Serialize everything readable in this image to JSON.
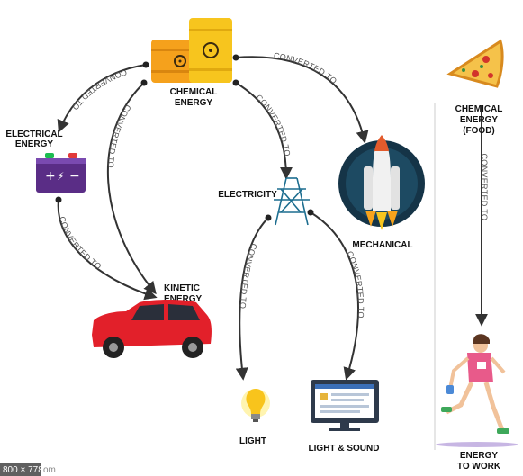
{
  "nodes": {
    "chemical": [
      "CHEMICAL",
      "ENERGY"
    ],
    "electrical": [
      "ELECTRICAL",
      "ENERGY"
    ],
    "electricity": "ELECTRICITY",
    "mechanical": "MECHANICAL",
    "kinetic": [
      "KINETIC",
      "ENERGY"
    ],
    "light": "LIGHT",
    "light_sound": "LIGHT & SOUND",
    "chemical_food": [
      "CHEMICAL",
      "ENERGY",
      "(FOOD)"
    ],
    "energy_to_work": [
      "ENERGY",
      "TO WORK"
    ]
  },
  "edge_label": "CONVERTED TO",
  "watermark": {
    "size": "800 × 778",
    "suffix": "om"
  },
  "colors": {
    "arrow": "#333333",
    "barrel_orange": "#f5a11c",
    "barrel_yellow": "#f7c51e",
    "battery": "#5a2d86",
    "car": "#e2202a",
    "rocket_bg": "#153447",
    "monitor": "#2e3a4b"
  }
}
